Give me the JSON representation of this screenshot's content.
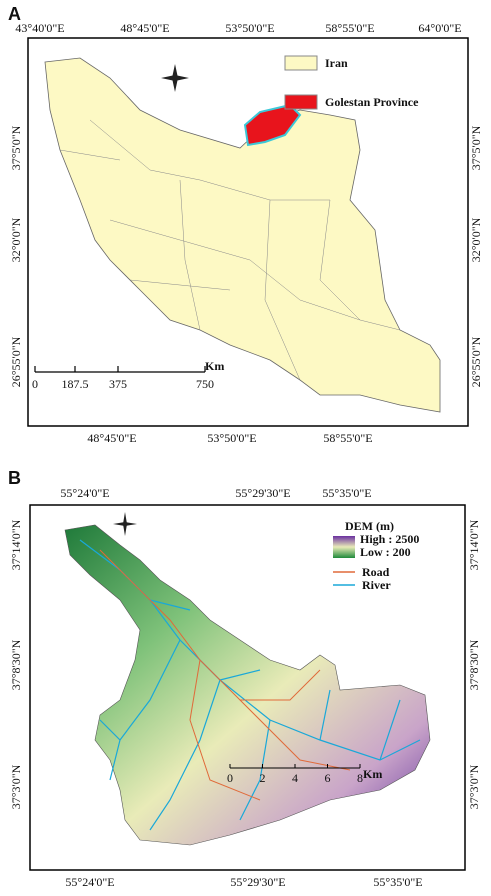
{
  "panel_a": {
    "label": "A",
    "top_ticks": [
      "43°40'0\"E",
      "48°45'0\"E",
      "53°50'0\"E",
      "58°55'0\"E",
      "64°0'0\"E"
    ],
    "bottom_ticks": [
      "48°45'0\"E",
      "53°50'0\"E",
      "58°55'0\"E"
    ],
    "left_ticks": [
      "37°5'0\"N",
      "32°0'0\"N",
      "26°55'0\"N"
    ],
    "right_ticks": [
      "37°5'0\"N",
      "32°0'0\"N",
      "26°55'0\"N"
    ],
    "legend": [
      "Iran",
      "Golestan Province"
    ],
    "scale": [
      "0",
      "187.5",
      "375",
      "750"
    ],
    "scale_unit": "Km"
  },
  "panel_b": {
    "label": "B",
    "top_ticks": [
      "55°24'0\"E",
      "55°29'30\"E",
      "55°35'0\"E"
    ],
    "bottom_ticks": [
      "55°24'0\"E",
      "55°29'30\"E",
      "55°35'0\"E"
    ],
    "left_ticks": [
      "37°14'0\"N",
      "37°8'30\"N",
      "37°3'0\"N"
    ],
    "right_ticks": [
      "37°14'0\"N",
      "37°8'30\"N",
      "37°3'0\"N"
    ],
    "legend_title": "DEM (m)",
    "high": "High : 2500",
    "low": "Low : 200",
    "road": "Road",
    "river": "River",
    "scale": [
      "0",
      "2",
      "4",
      "6",
      "8"
    ],
    "scale_unit": "Km"
  }
}
